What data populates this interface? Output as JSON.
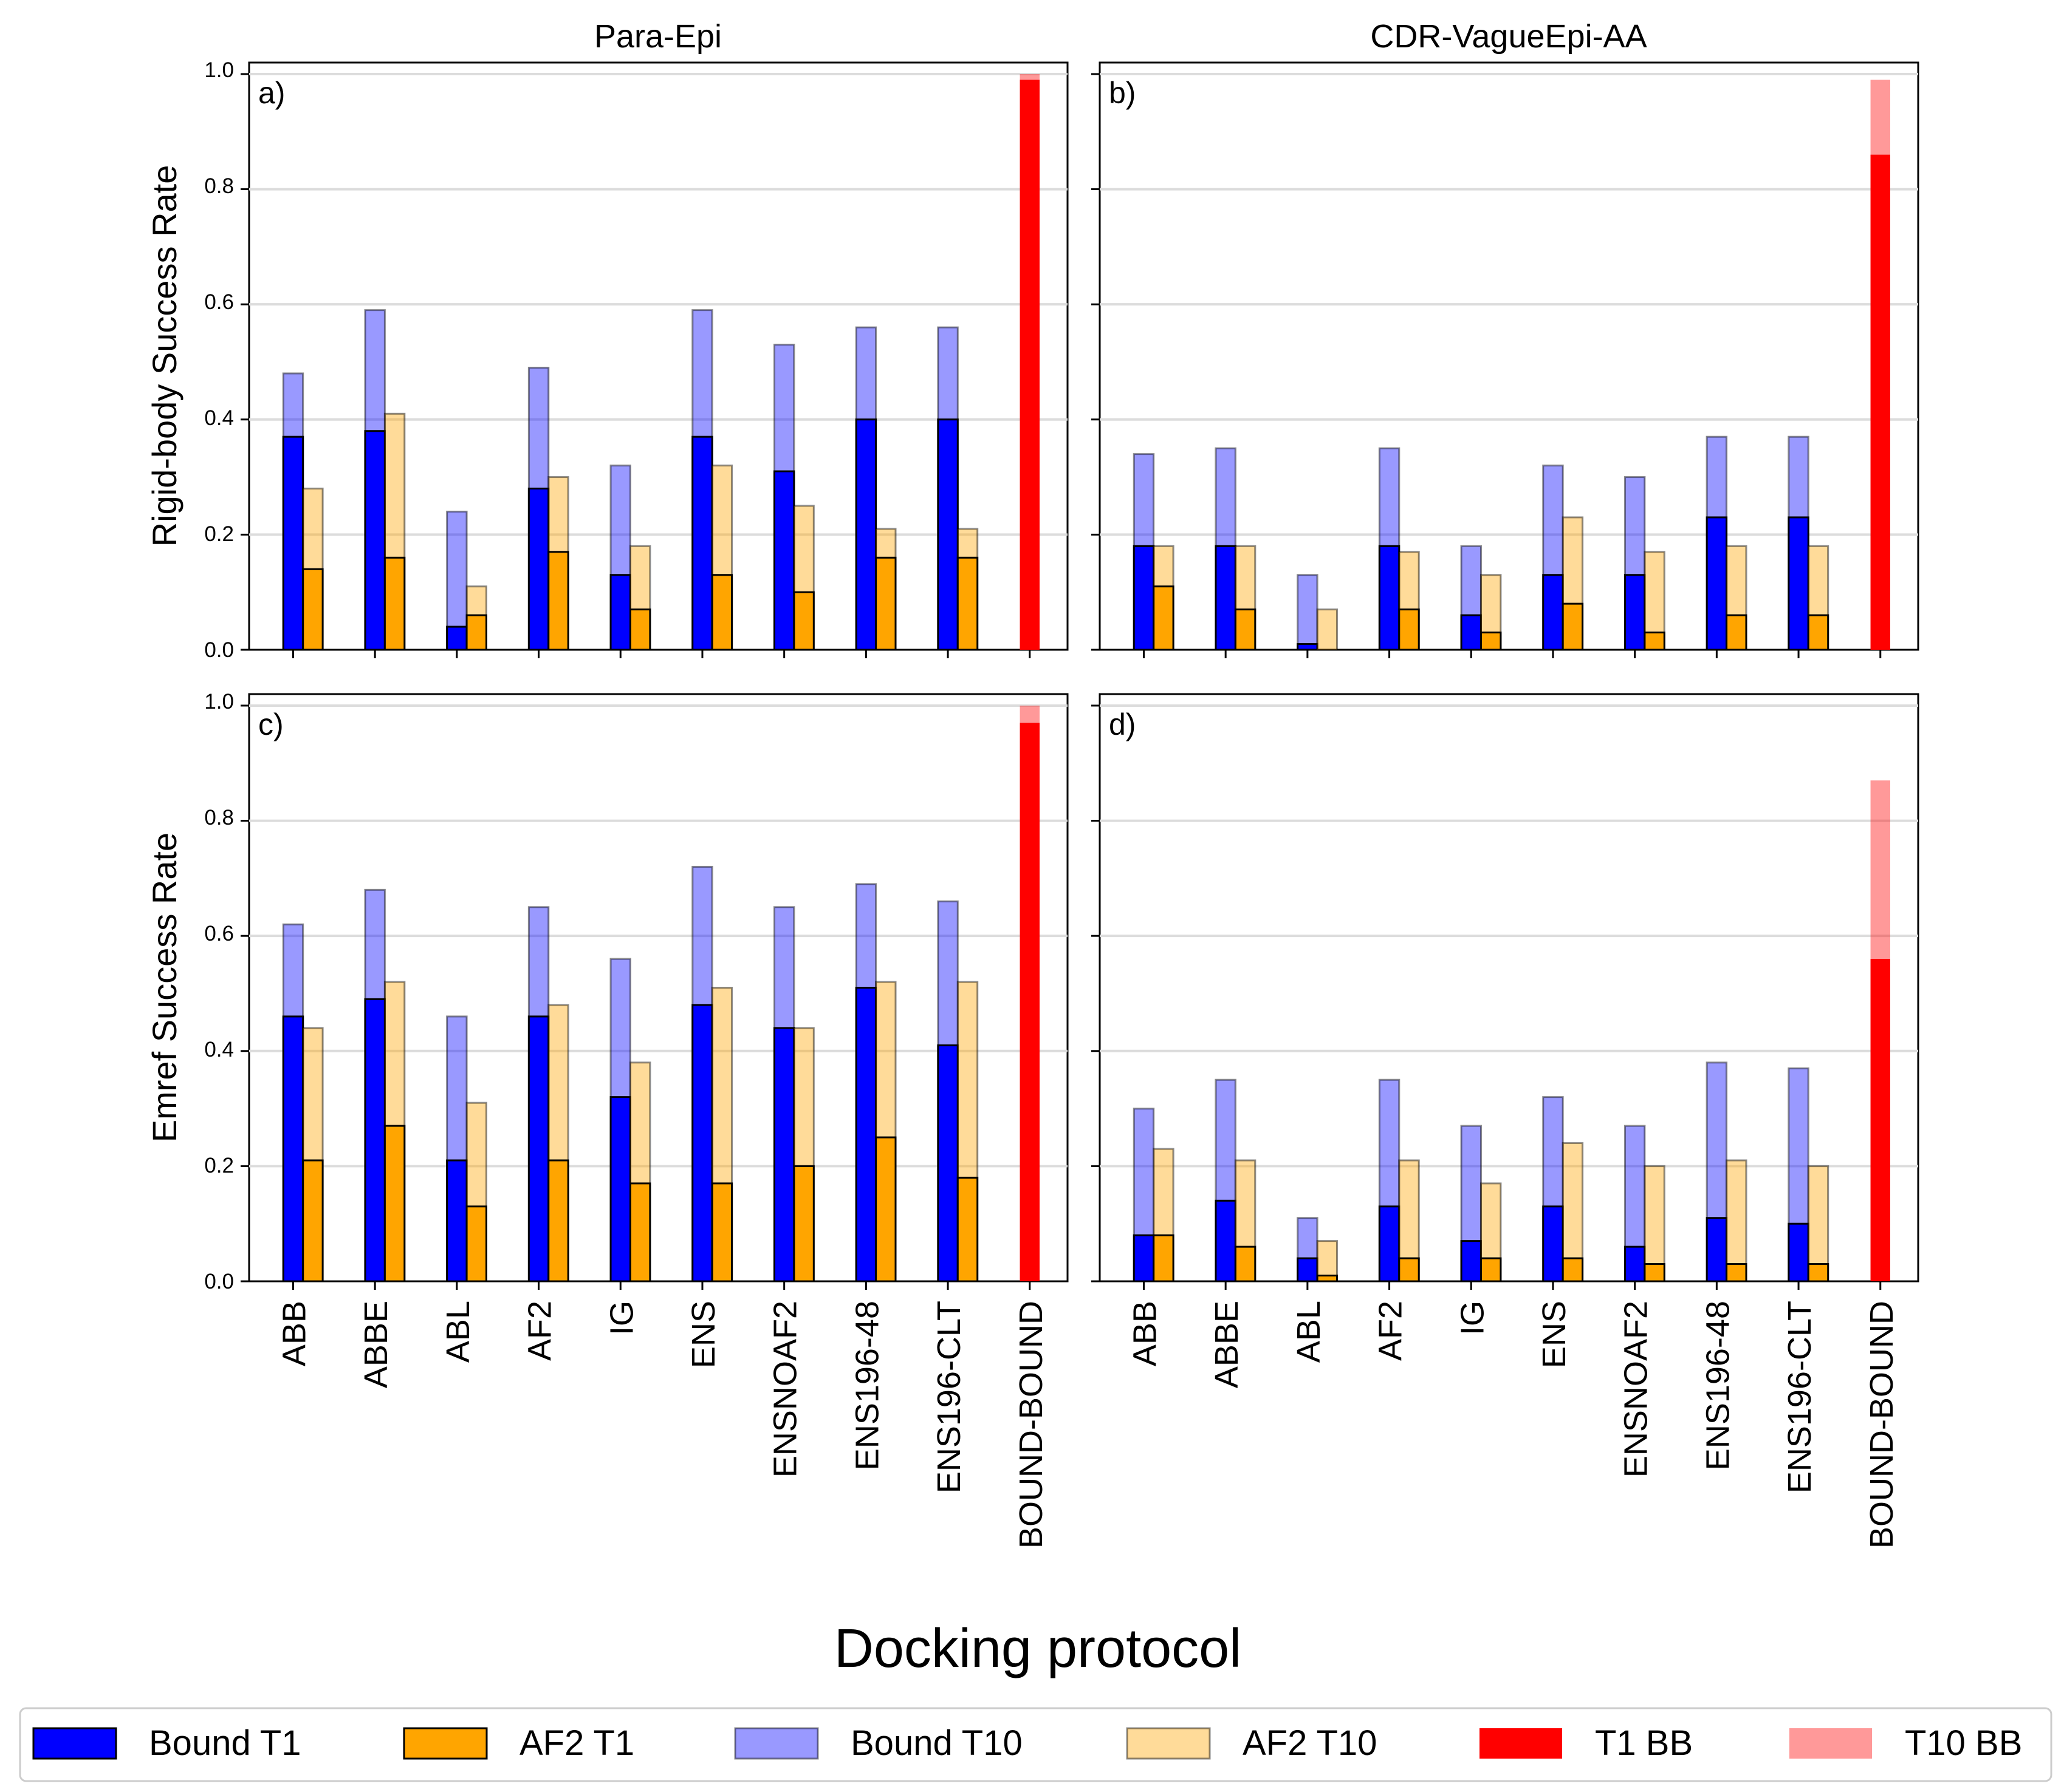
{
  "figure": {
    "xlabel": "Docking protocol",
    "row_ylabels": [
      "Rigid-body Success Rate",
      "Emref Success Rate"
    ],
    "col_titles": [
      "Para-Epi",
      "CDR-VagueEpi-AA"
    ]
  },
  "legend": [
    {
      "label": "Bound T1",
      "color": "#0000ff",
      "alpha": 1.0,
      "edge": true
    },
    {
      "label": "AF2 T1",
      "color": "#ffa500",
      "alpha": 1.0,
      "edge": true
    },
    {
      "label": "Bound T10",
      "color": "#0000ff",
      "alpha": 0.4,
      "edge": true
    },
    {
      "label": "AF2 T10",
      "color": "#ffa500",
      "alpha": 0.4,
      "edge": true
    },
    {
      "label": "T1 BB",
      "color": "#ff0000",
      "alpha": 1.0,
      "edge": false
    },
    {
      "label": "T10 BB",
      "color": "#ff0000",
      "alpha": 0.4,
      "edge": false
    }
  ],
  "colors": {
    "bound": "#0000ff",
    "af2": "#ffa500",
    "bb": "#ff0000",
    "edge": "#000000"
  },
  "chart_data": [
    {
      "panel": "a)",
      "title": "Para-Epi",
      "ylabel": "Rigid-body Success Rate",
      "type": "bar",
      "ylim": [
        0,
        1.0
      ],
      "yticks": [
        "0.0",
        "0.2",
        "0.4",
        "0.6",
        "0.8",
        "1.0"
      ],
      "grid": "y",
      "categories": [
        "ABB",
        "ABBE",
        "ABL",
        "AF2",
        "IG",
        "ENS",
        "ENSNOAF2",
        "ENS196-48",
        "ENS196-CLT",
        "BOUND-BOUND"
      ],
      "series": [
        {
          "name": "Bound T10",
          "values": [
            0.48,
            0.59,
            0.24,
            0.49,
            0.32,
            0.59,
            0.53,
            0.56,
            0.56,
            null
          ]
        },
        {
          "name": "Bound T1",
          "values": [
            0.37,
            0.38,
            0.04,
            0.28,
            0.13,
            0.37,
            0.31,
            0.4,
            0.4,
            null
          ]
        },
        {
          "name": "AF2 T10",
          "values": [
            0.28,
            0.41,
            0.11,
            0.3,
            0.18,
            0.32,
            0.25,
            0.21,
            0.21,
            null
          ]
        },
        {
          "name": "AF2 T1",
          "values": [
            0.14,
            0.16,
            0.06,
            0.17,
            0.07,
            0.13,
            0.1,
            0.16,
            0.16,
            null
          ]
        },
        {
          "name": "T10 BB",
          "values": [
            null,
            null,
            null,
            null,
            null,
            null,
            null,
            null,
            null,
            1.0
          ]
        },
        {
          "name": "T1 BB",
          "values": [
            null,
            null,
            null,
            null,
            null,
            null,
            null,
            null,
            null,
            0.99
          ]
        }
      ]
    },
    {
      "panel": "b)",
      "title": "CDR-VagueEpi-AA",
      "ylabel": "",
      "type": "bar",
      "ylim": [
        0,
        1.0
      ],
      "yticks": [],
      "grid": "y",
      "categories": [
        "ABB",
        "ABBE",
        "ABL",
        "AF2",
        "IG",
        "ENS",
        "ENSNOAF2",
        "ENS196-48",
        "ENS196-CLT",
        "BOUND-BOUND"
      ],
      "series": [
        {
          "name": "Bound T10",
          "values": [
            0.34,
            0.35,
            0.13,
            0.35,
            0.18,
            0.32,
            0.3,
            0.37,
            0.37,
            null
          ]
        },
        {
          "name": "Bound T1",
          "values": [
            0.18,
            0.18,
            0.01,
            0.18,
            0.06,
            0.13,
            0.13,
            0.23,
            0.23,
            null
          ]
        },
        {
          "name": "AF2 T10",
          "values": [
            0.18,
            0.18,
            0.07,
            0.17,
            0.13,
            0.23,
            0.17,
            0.18,
            0.18,
            null
          ]
        },
        {
          "name": "AF2 T1",
          "values": [
            0.11,
            0.07,
            0.0,
            0.07,
            0.03,
            0.08,
            0.03,
            0.06,
            0.06,
            null
          ]
        },
        {
          "name": "T10 BB",
          "values": [
            null,
            null,
            null,
            null,
            null,
            null,
            null,
            null,
            null,
            0.99
          ]
        },
        {
          "name": "T1 BB",
          "values": [
            null,
            null,
            null,
            null,
            null,
            null,
            null,
            null,
            null,
            0.86
          ]
        }
      ]
    },
    {
      "panel": "c)",
      "title": "",
      "ylabel": "Emref Success Rate",
      "type": "bar",
      "ylim": [
        0,
        1.0
      ],
      "yticks": [
        "0.0",
        "0.2",
        "0.4",
        "0.6",
        "0.8",
        "1.0"
      ],
      "grid": "y",
      "categories": [
        "ABB",
        "ABBE",
        "ABL",
        "AF2",
        "IG",
        "ENS",
        "ENSNOAF2",
        "ENS196-48",
        "ENS196-CLT",
        "BOUND-BOUND"
      ],
      "series": [
        {
          "name": "Bound T10",
          "values": [
            0.62,
            0.68,
            0.46,
            0.65,
            0.56,
            0.72,
            0.65,
            0.69,
            0.66,
            null
          ]
        },
        {
          "name": "Bound T1",
          "values": [
            0.46,
            0.49,
            0.21,
            0.46,
            0.32,
            0.48,
            0.44,
            0.51,
            0.41,
            null
          ]
        },
        {
          "name": "AF2 T10",
          "values": [
            0.44,
            0.52,
            0.31,
            0.48,
            0.38,
            0.51,
            0.44,
            0.52,
            0.52,
            null
          ]
        },
        {
          "name": "AF2 T1",
          "values": [
            0.21,
            0.27,
            0.13,
            0.21,
            0.17,
            0.17,
            0.2,
            0.25,
            0.18,
            null
          ]
        },
        {
          "name": "T10 BB",
          "values": [
            null,
            null,
            null,
            null,
            null,
            null,
            null,
            null,
            null,
            1.0
          ]
        },
        {
          "name": "T1 BB",
          "values": [
            null,
            null,
            null,
            null,
            null,
            null,
            null,
            null,
            null,
            0.97
          ]
        }
      ]
    },
    {
      "panel": "d)",
      "title": "",
      "ylabel": "",
      "type": "bar",
      "ylim": [
        0,
        1.0
      ],
      "yticks": [],
      "grid": "y",
      "categories": [
        "ABB",
        "ABBE",
        "ABL",
        "AF2",
        "IG",
        "ENS",
        "ENSNOAF2",
        "ENS196-48",
        "ENS196-CLT",
        "BOUND-BOUND"
      ],
      "series": [
        {
          "name": "Bound T10",
          "values": [
            0.3,
            0.35,
            0.11,
            0.35,
            0.27,
            0.32,
            0.27,
            0.38,
            0.37,
            null
          ]
        },
        {
          "name": "Bound T1",
          "values": [
            0.08,
            0.14,
            0.04,
            0.13,
            0.07,
            0.13,
            0.06,
            0.11,
            0.1,
            null
          ]
        },
        {
          "name": "AF2 T10",
          "values": [
            0.23,
            0.21,
            0.07,
            0.21,
            0.17,
            0.24,
            0.2,
            0.21,
            0.2,
            null
          ]
        },
        {
          "name": "AF2 T1",
          "values": [
            0.08,
            0.06,
            0.01,
            0.04,
            0.04,
            0.04,
            0.03,
            0.03,
            0.03,
            null
          ]
        },
        {
          "name": "T10 BB",
          "values": [
            null,
            null,
            null,
            null,
            null,
            null,
            null,
            null,
            null,
            0.87
          ]
        },
        {
          "name": "T1 BB",
          "values": [
            null,
            null,
            null,
            null,
            null,
            null,
            null,
            null,
            null,
            0.56
          ]
        }
      ]
    }
  ]
}
